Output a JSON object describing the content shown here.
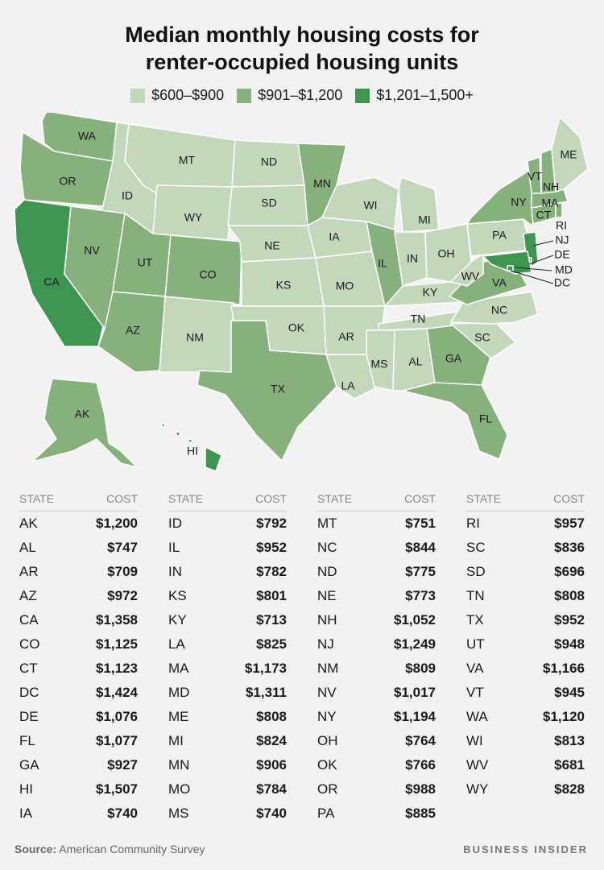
{
  "title_line1": "Median monthly housing costs for",
  "title_line2": "renter-occupied housing units",
  "legend": [
    {
      "label": "$600–$900",
      "color": "#c3d8bb"
    },
    {
      "label": "$901–$1,200",
      "color": "#86b07c"
    },
    {
      "label": "$1,201–1,500+",
      "color": "#3e9550"
    }
  ],
  "table_header": {
    "state": "STATE",
    "cost": "COST"
  },
  "states": [
    {
      "state": "AK",
      "cost": "$1,200"
    },
    {
      "state": "AL",
      "cost": "$747"
    },
    {
      "state": "AR",
      "cost": "$709"
    },
    {
      "state": "AZ",
      "cost": "$972"
    },
    {
      "state": "CA",
      "cost": "$1,358"
    },
    {
      "state": "CO",
      "cost": "$1,125"
    },
    {
      "state": "CT",
      "cost": "$1,123"
    },
    {
      "state": "DC",
      "cost": "$1,424"
    },
    {
      "state": "DE",
      "cost": "$1,076"
    },
    {
      "state": "FL",
      "cost": "$1,077"
    },
    {
      "state": "GA",
      "cost": "$927"
    },
    {
      "state": "HI",
      "cost": "$1,507"
    },
    {
      "state": "IA",
      "cost": "$740"
    },
    {
      "state": "ID",
      "cost": "$792"
    },
    {
      "state": "IL",
      "cost": "$952"
    },
    {
      "state": "IN",
      "cost": "$782"
    },
    {
      "state": "KS",
      "cost": "$801"
    },
    {
      "state": "KY",
      "cost": "$713"
    },
    {
      "state": "LA",
      "cost": "$825"
    },
    {
      "state": "MA",
      "cost": "$1,173"
    },
    {
      "state": "MD",
      "cost": "$1,311"
    },
    {
      "state": "ME",
      "cost": "$808"
    },
    {
      "state": "MI",
      "cost": "$824"
    },
    {
      "state": "MN",
      "cost": "$906"
    },
    {
      "state": "MO",
      "cost": "$784"
    },
    {
      "state": "MS",
      "cost": "$740"
    },
    {
      "state": "MT",
      "cost": "$751"
    },
    {
      "state": "NC",
      "cost": "$844"
    },
    {
      "state": "ND",
      "cost": "$775"
    },
    {
      "state": "NE",
      "cost": "$773"
    },
    {
      "state": "NH",
      "cost": "$1,052"
    },
    {
      "state": "NJ",
      "cost": "$1,249"
    },
    {
      "state": "NM",
      "cost": "$809"
    },
    {
      "state": "NV",
      "cost": "$1,017"
    },
    {
      "state": "NY",
      "cost": "$1,194"
    },
    {
      "state": "OH",
      "cost": "$764"
    },
    {
      "state": "OK",
      "cost": "$766"
    },
    {
      "state": "OR",
      "cost": "$988"
    },
    {
      "state": "PA",
      "cost": "$885"
    },
    {
      "state": "RI",
      "cost": "$957"
    },
    {
      "state": "SC",
      "cost": "$836"
    },
    {
      "state": "SD",
      "cost": "$696"
    },
    {
      "state": "TN",
      "cost": "$808"
    },
    {
      "state": "TX",
      "cost": "$952"
    },
    {
      "state": "UT",
      "cost": "$948"
    },
    {
      "state": "VA",
      "cost": "$1,166"
    },
    {
      "state": "VT",
      "cost": "$945"
    },
    {
      "state": "WA",
      "cost": "$1,120"
    },
    {
      "state": "WI",
      "cost": "$813"
    },
    {
      "state": "WV",
      "cost": "$681"
    },
    {
      "state": "WY",
      "cost": "$828"
    }
  ],
  "source_lead": "Source:",
  "source_text": "American Community Survey",
  "brand": "BUSINESS INSIDER",
  "map_tier_colors": {
    "low": "#c3d8bb",
    "mid": "#86b07c",
    "high": "#3e9550"
  }
}
